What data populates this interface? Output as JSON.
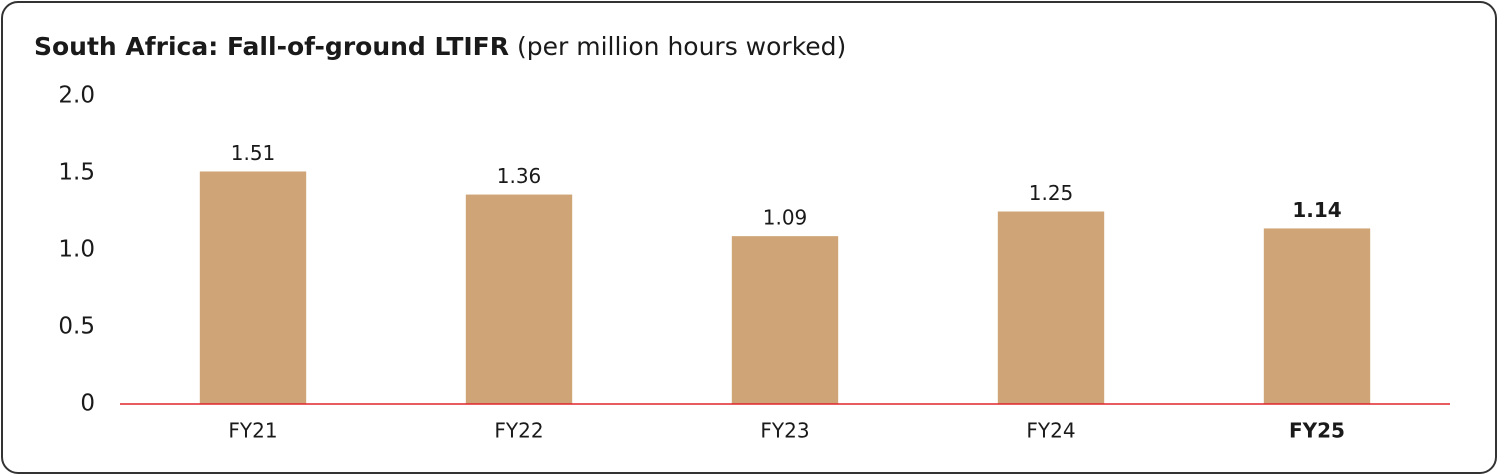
{
  "chart_data": {
    "type": "bar",
    "title": "South Africa: Fall-of-ground LTIFR",
    "subtitle": "(per million hours worked)",
    "categories": [
      "FY21",
      "FY22",
      "FY23",
      "FY24",
      "FY25"
    ],
    "values": [
      1.51,
      1.36,
      1.09,
      1.25,
      1.14
    ],
    "color": "#cfa577",
    "baseline_color": "#e0252b",
    "highlight_index": 4,
    "ylim": [
      0,
      2
    ],
    "yticks": [
      0,
      0.5,
      {
        "value": 1,
        "label": "1.0"
      },
      1.5,
      {
        "value": 2,
        "label": "2.0"
      }
    ],
    "grid": false
  }
}
